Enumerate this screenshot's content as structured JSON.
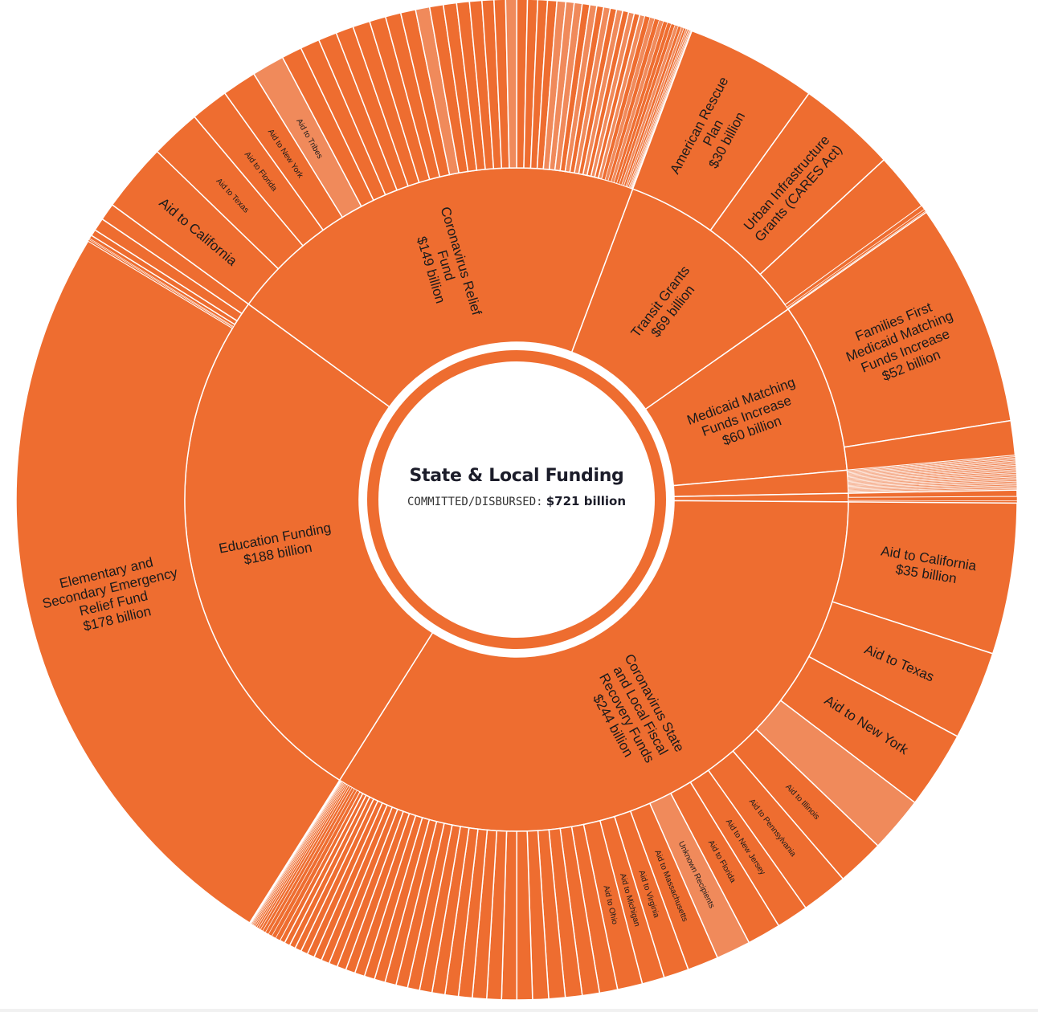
{
  "colors": {
    "main": "#EE6D30",
    "light": "#F08A5B",
    "stroke": "#FFFFFF",
    "center": "#FFFFFF"
  },
  "center": {
    "title": "State & Local Funding",
    "key": "COMMITTED/DISBURSED:",
    "total": "$721 billion"
  },
  "chart_data": {
    "type": "sunburst",
    "title": "State & Local Funding",
    "total_label": "COMMITTED/DISBURSED: $721 billion",
    "total": 721,
    "units": "billion USD",
    "children": [
      {
        "name": "Transit Grants",
        "label_lines": [
          "Transit Grants",
          "$69 billion"
        ],
        "value": 69,
        "children": [
          {
            "name": "American Rescue Plan",
            "label_lines": [
              "American Rescue",
              "Plan",
              "$30 billion"
            ],
            "value": 30
          },
          {
            "name": "Urban Infrastructure Grants (CARES Act)",
            "label_lines": [
              "Urban Infrastructure",
              "Grants (CARES Act)"
            ],
            "value": 22.6
          },
          {
            "value": 13.4
          },
          {
            "value": 1.0
          },
          {
            "value": 0.5
          },
          {
            "value": 0.3
          }
        ]
      },
      {
        "name": "Medicaid Matching Funds Increase",
        "label_lines": [
          "Medicaid Matching",
          "Funds Increase",
          "$60 billion"
        ],
        "value": 60,
        "children": [
          {
            "name": "Families First Medicaid Matching Funds Increase",
            "label_lines": [
              "Families First",
              "Medicaid Matching",
              "Funds Increase",
              "$52 billion"
            ],
            "value": 52
          },
          {
            "value": 8
          }
        ]
      },
      {
        "value": 8,
        "other_values": [
          0.33,
          0.33,
          0.33,
          0.33,
          0.33,
          0.33,
          0.33,
          0.33,
          0.33,
          0.33,
          0.33,
          0.33,
          0.33,
          0.33,
          0.33,
          0.33,
          0.33,
          0.33,
          0.33,
          0.33,
          0.33,
          0.33,
          0.33,
          0.33
        ],
        "other_light_all": true
      },
      {
        "value": 3,
        "children": [
          {
            "value": 1.5
          },
          {
            "value": 1
          },
          {
            "value": 0.5
          }
        ]
      },
      {
        "name": "Coronavirus State and Local Fiscal Recovery Funds",
        "label_lines": [
          "Coronavirus State",
          "and Local Fiscal",
          "Recovery Funds",
          "$244 billion"
        ],
        "value": 244,
        "children": [
          {
            "name": "Aid to California",
            "label_lines": [
              "Aid to California",
              "$35 billion"
            ],
            "value": 35
          },
          {
            "name": "Aid to Texas",
            "label_lines": [
              "Aid to Texas"
            ],
            "value": 20.6
          },
          {
            "name": "Aid to New York",
            "label_lines": [
              "Aid to New York"
            ],
            "value": 18
          },
          {
            "value": 13,
            "light": true
          },
          {
            "name": "Aid to Illinois",
            "label_lines": [
              "Aid to Illinois"
            ],
            "value": 11
          },
          {
            "name": "Aid to Pennsylvania",
            "label_lines": [
              "Aid to Pennsylvania"
            ],
            "value": 10.8
          },
          {
            "name": "Aid to New Jersey",
            "label_lines": [
              "Aid to New Jersey"
            ],
            "value": 7.4
          },
          {
            "name": "Aid to Florida",
            "label_lines": [
              "Aid to Florida"
            ],
            "value": 7.8
          },
          {
            "name": "Unknown Recipients",
            "label_lines": [
              "Unknown Recipients"
            ],
            "value": 8,
            "light": true
          },
          {
            "name": "Aid to Massachusetts",
            "label_lines": [
              "Aid to Massachusetts"
            ],
            "value": 7.2
          },
          {
            "name": "Aid to Virginia",
            "label_lines": [
              "Aid to Virginia"
            ],
            "value": 5.8
          },
          {
            "name": "Aid to Michigan",
            "label_lines": [
              "Aid to Michigan"
            ],
            "value": 5.2
          },
          {
            "name": "Aid to Ohio",
            "label_lines": [
              "Aid to Ohio"
            ],
            "value": 5.8
          }
        ],
        "other_values": [
          4.2,
          4,
          3.9,
          3.8,
          3.7,
          3.6,
          3.5,
          3.4,
          3.3,
          3.2,
          3.1,
          3,
          2.9,
          2.8,
          2.7,
          2.6,
          2.5,
          2.4,
          2.3,
          2.2,
          2.1,
          2,
          1.9,
          1.8,
          1.7,
          1.6,
          1.5,
          1.4,
          1.3,
          1.2,
          1.1,
          1,
          0.9,
          0.8,
          0.7,
          0.6,
          0.5,
          0.45,
          0.4,
          0.35,
          0.3,
          0.25,
          0.2,
          0.15,
          0.1,
          0.1,
          0.1
        ]
      },
      {
        "name": "Education Funding",
        "label_lines": [
          "Education Funding",
          "$188 billion"
        ],
        "value": 188,
        "children": [
          {
            "name": "Elementary and Secondary Emergency Relief Fund",
            "label_lines": [
              "Elementary and",
              "Secondary Emergency",
              "Relief Fund",
              "$178 billion"
            ],
            "value": 178
          },
          {
            "value": 0.4
          },
          {
            "value": 0.3
          },
          {
            "value": 0.8
          },
          {
            "value": 1.5
          },
          {
            "value": 3
          },
          {
            "value": 4
          }
        ]
      },
      {
        "name": "Coronavirus Relief Fund",
        "label_lines": [
          "Coronavirus Relief",
          "Fund",
          "$149 billion"
        ],
        "value": 149,
        "children": [
          {
            "name": "Aid to California",
            "label_lines": [
              "Aid to California"
            ],
            "value": 15.6
          },
          {
            "name": "Aid to Texas",
            "label_lines": [
              "Aid to Texas"
            ],
            "value": 11.4
          },
          {
            "name": "Aid to Florida",
            "label_lines": [
              "Aid to Florida"
            ],
            "value": 8.6
          },
          {
            "name": "Aid to New York",
            "label_lines": [
              "Aid to New York"
            ],
            "value": 7.8
          },
          {
            "name": "Aid to Tribes",
            "label_lines": [
              "Aid to Tribes"
            ],
            "value": 7.4,
            "light": true
          }
        ],
        "other_values": [
          4.6,
          4.4,
          4.2,
          4,
          3.9,
          3.7,
          3.5,
          3.4,
          3.2,
          3.1,
          3,
          2.9,
          2.8,
          2.7,
          2.6,
          2.5,
          2.4,
          2.3,
          2.2,
          2.1,
          2,
          1.9,
          1.8,
          1.7,
          1.6,
          1.55,
          1.5,
          1.45,
          1.4,
          1.35,
          1.3,
          1.25,
          1.2,
          1.15,
          1.1,
          1.05,
          1,
          0.95,
          0.9,
          0.85,
          0.8,
          0.7,
          0.6,
          0.5,
          0.4,
          0.3,
          0.25,
          0.2,
          0.15,
          0.1
        ],
        "other_light": [
          8,
          15,
          20,
          21,
          22,
          24,
          26,
          28,
          30,
          32,
          34,
          36,
          40,
          42,
          44,
          46,
          48
        ]
      }
    ]
  }
}
